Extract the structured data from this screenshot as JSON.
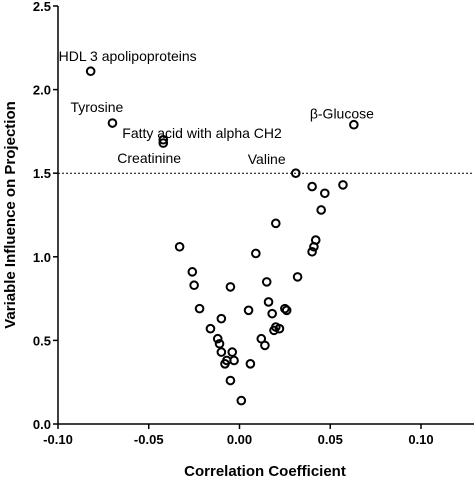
{
  "chart_data": {
    "type": "scatter",
    "title": "",
    "xlabel": "Correlation Coefficient",
    "ylabel": "Variable Influence on Projection",
    "xlim": [
      -0.1,
      0.13
    ],
    "ylim": [
      0.0,
      2.5
    ],
    "xticks": [
      "-0.10",
      "-0.05",
      "0.00",
      "0.05",
      "0.10"
    ],
    "xtick_values": [
      -0.1,
      -0.05,
      0.0,
      0.05,
      0.1
    ],
    "yticks": [
      "0.0",
      "0.5",
      "1.0",
      "1.5",
      "2.0",
      "2.5"
    ],
    "ytick_values": [
      0.0,
      0.5,
      1.0,
      1.5,
      2.0,
      2.5
    ],
    "threshold": {
      "y": 1.5,
      "style": "dashed"
    },
    "grid": false,
    "marker": "open-circle",
    "annotations": [
      {
        "text": "HDL 3 apolipoproteins",
        "x": -0.082,
        "y": 2.11
      },
      {
        "text": "Tyrosine",
        "x": -0.07,
        "y": 1.8
      },
      {
        "text": "Fatty acid with alpha CH2",
        "x": -0.042,
        "y": 1.7
      },
      {
        "text": "Creatinine",
        "x": -0.042,
        "y": 1.68
      },
      {
        "text": "β-Glucose",
        "x": 0.063,
        "y": 1.79
      },
      {
        "text": "Valine",
        "x": 0.031,
        "y": 1.5
      }
    ],
    "points": [
      {
        "x": -0.082,
        "y": 2.11
      },
      {
        "x": -0.07,
        "y": 1.8
      },
      {
        "x": -0.042,
        "y": 1.7
      },
      {
        "x": -0.042,
        "y": 1.68
      },
      {
        "x": 0.063,
        "y": 1.79
      },
      {
        "x": 0.031,
        "y": 1.5
      },
      {
        "x": 0.04,
        "y": 1.42
      },
      {
        "x": 0.057,
        "y": 1.43
      },
      {
        "x": 0.047,
        "y": 1.38
      },
      {
        "x": 0.045,
        "y": 1.28
      },
      {
        "x": 0.02,
        "y": 1.2
      },
      {
        "x": 0.042,
        "y": 1.1
      },
      {
        "x": 0.041,
        "y": 1.06
      },
      {
        "x": 0.04,
        "y": 1.03
      },
      {
        "x": -0.033,
        "y": 1.06
      },
      {
        "x": 0.009,
        "y": 1.02
      },
      {
        "x": -0.026,
        "y": 0.91
      },
      {
        "x": -0.025,
        "y": 0.83
      },
      {
        "x": 0.015,
        "y": 0.85
      },
      {
        "x": 0.032,
        "y": 0.88
      },
      {
        "x": -0.005,
        "y": 0.82
      },
      {
        "x": 0.016,
        "y": 0.73
      },
      {
        "x": -0.022,
        "y": 0.69
      },
      {
        "x": 0.025,
        "y": 0.69
      },
      {
        "x": 0.026,
        "y": 0.68
      },
      {
        "x": 0.005,
        "y": 0.68
      },
      {
        "x": 0.018,
        "y": 0.66
      },
      {
        "x": -0.01,
        "y": 0.63
      },
      {
        "x": -0.016,
        "y": 0.57
      },
      {
        "x": 0.02,
        "y": 0.58
      },
      {
        "x": 0.022,
        "y": 0.57
      },
      {
        "x": 0.019,
        "y": 0.56
      },
      {
        "x": -0.012,
        "y": 0.51
      },
      {
        "x": -0.011,
        "y": 0.48
      },
      {
        "x": 0.012,
        "y": 0.51
      },
      {
        "x": 0.014,
        "y": 0.47
      },
      {
        "x": -0.01,
        "y": 0.43
      },
      {
        "x": -0.004,
        "y": 0.43
      },
      {
        "x": -0.007,
        "y": 0.38
      },
      {
        "x": -0.003,
        "y": 0.38
      },
      {
        "x": -0.008,
        "y": 0.36
      },
      {
        "x": 0.006,
        "y": 0.36
      },
      {
        "x": -0.005,
        "y": 0.26
      },
      {
        "x": 0.001,
        "y": 0.14
      }
    ]
  }
}
